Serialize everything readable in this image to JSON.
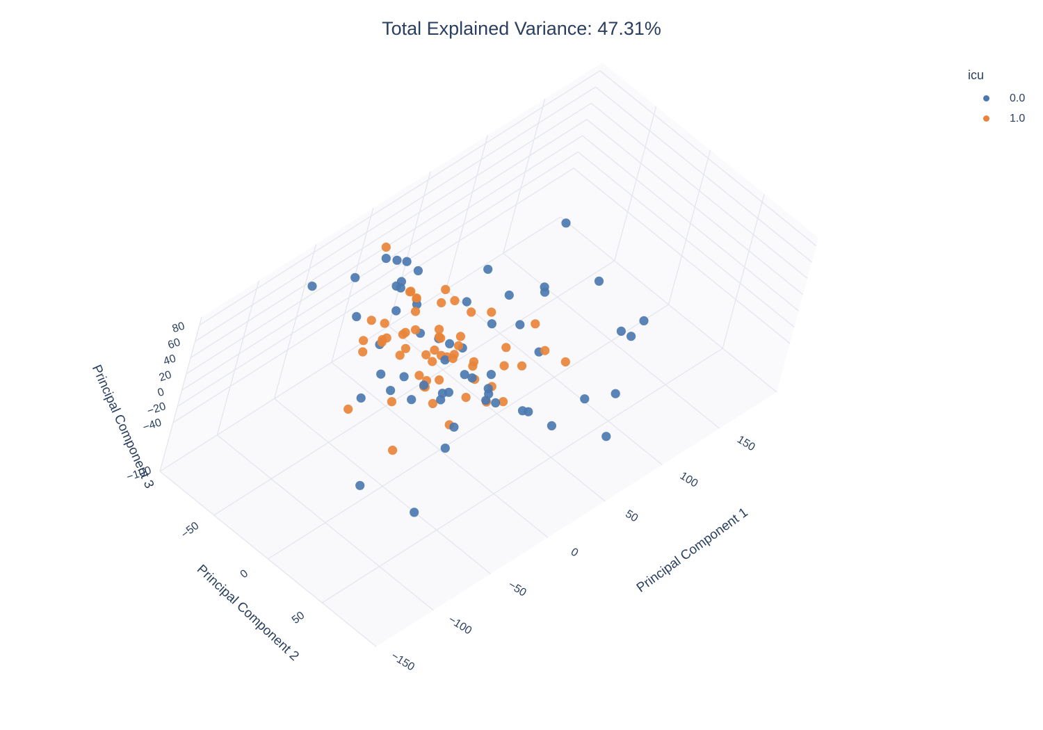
{
  "chart_data": {
    "type": "scatter",
    "title": "Total Explained Variance: 47.31%",
    "legend": {
      "title": "icu",
      "placement": "top-right"
    },
    "axes": {
      "x": {
        "label": "Principal Component 1",
        "range": [
          -150,
          200
        ],
        "ticks": [
          -150,
          -100,
          -50,
          0,
          50,
          100,
          150
        ]
      },
      "y": {
        "label": "Principal Component 2",
        "range": [
          -100,
          100
        ],
        "ticks": [
          -50,
          0,
          50
        ]
      },
      "z": {
        "label": "Principal Component 3",
        "range": [
          -100,
          90
        ],
        "ticks": [
          -100,
          -40,
          -20,
          0,
          20,
          40,
          60,
          80
        ]
      }
    },
    "series": [
      {
        "name": "0.0",
        "color": "#4c78b0",
        "points": [
          [
            -137,
            92,
            45
          ],
          [
            -74,
            -7,
            52
          ],
          [
            -92,
            70,
            60
          ],
          [
            -56,
            15,
            46
          ],
          [
            -11,
            3,
            -16
          ],
          [
            -42,
            55,
            58
          ],
          [
            0,
            80,
            16
          ],
          [
            48,
            65,
            -10
          ],
          [
            55,
            84,
            -42
          ],
          [
            93,
            55,
            16
          ],
          [
            86,
            60,
            -43
          ],
          [
            102,
            40,
            -2
          ],
          [
            123,
            40,
            -8
          ],
          [
            27,
            40,
            -34
          ],
          [
            120,
            -37,
            32
          ],
          [
            113,
            5,
            12
          ],
          [
            42,
            25,
            10
          ],
          [
            33,
            -10,
            15
          ],
          [
            78,
            -10,
            20
          ],
          [
            5,
            20,
            10
          ],
          [
            28,
            -30,
            25
          ],
          [
            42,
            5,
            22
          ],
          [
            55,
            -40,
            30
          ],
          [
            57,
            -20,
            18
          ],
          [
            84,
            -13,
            5
          ],
          [
            -5,
            0,
            30
          ],
          [
            -5,
            -20,
            20
          ],
          [
            -12,
            -30,
            22
          ],
          [
            -8,
            30,
            15
          ],
          [
            -20,
            40,
            30
          ],
          [
            8,
            -20,
            2
          ],
          [
            -34,
            10,
            52
          ],
          [
            -31,
            55,
            45
          ],
          [
            10,
            -70,
            15
          ],
          [
            -9,
            -60,
            45
          ],
          [
            -10,
            -40,
            45
          ],
          [
            1,
            -72,
            55
          ],
          [
            -10,
            -60,
            -26
          ],
          [
            -70,
            -20,
            5
          ],
          [
            2,
            -65,
            60
          ],
          [
            11,
            -61,
            45
          ],
          [
            -11,
            -72,
            68
          ],
          [
            -30,
            -40,
            55
          ],
          [
            -70,
            -80,
            78
          ],
          [
            -48,
            -65,
            85
          ],
          [
            -41,
            20,
            28
          ],
          [
            -54,
            45,
            25
          ],
          [
            -28,
            30,
            46
          ],
          [
            16,
            -75,
            12
          ],
          [
            -10,
            62,
            24
          ],
          [
            -72,
            20,
            48
          ],
          [
            -62,
            35,
            55
          ],
          [
            -124,
            36,
            6
          ],
          [
            -41,
            -61,
            35
          ],
          [
            -39,
            -14,
            10
          ],
          [
            -23,
            20,
            35
          ],
          [
            -48,
            -15,
            0
          ]
        ]
      },
      {
        "name": "1.0",
        "color": "#e8843a",
        "points": [
          [
            -140,
            65,
            95
          ],
          [
            -120,
            40,
            110
          ],
          [
            -104,
            -3,
            40
          ],
          [
            -24,
            -65,
            101
          ],
          [
            -70,
            -28,
            92
          ],
          [
            -26,
            -30,
            78
          ],
          [
            -18,
            -16,
            80
          ],
          [
            -6,
            0,
            75
          ],
          [
            -20,
            -40,
            70
          ],
          [
            -44,
            -20,
            60
          ],
          [
            -60,
            -20,
            70
          ],
          [
            -70,
            -30,
            65
          ],
          [
            -73,
            -26,
            58
          ],
          [
            -53,
            -28,
            53
          ],
          [
            -55,
            -10,
            55
          ],
          [
            -40,
            5,
            50
          ],
          [
            -36,
            -4,
            45
          ],
          [
            -47,
            3,
            37
          ],
          [
            -40,
            14,
            37
          ],
          [
            -44,
            -15,
            48
          ],
          [
            -27,
            6,
            45
          ],
          [
            -14,
            3,
            44
          ],
          [
            -17,
            -10,
            42
          ],
          [
            -10,
            -18,
            38
          ],
          [
            -2,
            -6,
            35
          ],
          [
            -18,
            25,
            30
          ],
          [
            -29,
            30,
            23
          ],
          [
            -20,
            40,
            20
          ],
          [
            -8,
            44,
            14
          ],
          [
            13,
            20,
            36
          ],
          [
            21,
            30,
            17
          ],
          [
            -46,
            8,
            28
          ],
          [
            44,
            15,
            32
          ],
          [
            41,
            30,
            18
          ],
          [
            16,
            -40,
            40
          ],
          [
            15,
            -30,
            38
          ],
          [
            -2,
            28,
            10
          ],
          [
            -7,
            -50,
            47
          ],
          [
            -15,
            -36,
            45
          ],
          [
            32,
            -12,
            28
          ],
          [
            -33,
            -44,
            38
          ],
          [
            -17,
            -6,
            25
          ],
          [
            -20,
            -10,
            30
          ],
          [
            -5,
            -20,
            22
          ],
          [
            -14,
            -40,
            14
          ],
          [
            19,
            18,
            6
          ],
          [
            2,
            -10,
            5
          ],
          [
            -22,
            18,
            -30
          ],
          [
            -3,
            10,
            22
          ],
          [
            4,
            5,
            5
          ],
          [
            -28,
            -4,
            6
          ],
          [
            -50,
            -30,
            45
          ],
          [
            -40,
            14,
            8
          ],
          [
            -50,
            12,
            35
          ],
          [
            -32,
            -20,
            55
          ],
          [
            2,
            -50,
            30
          ],
          [
            52,
            40,
            5
          ],
          [
            -40,
            20,
            70
          ]
        ]
      }
    ]
  }
}
